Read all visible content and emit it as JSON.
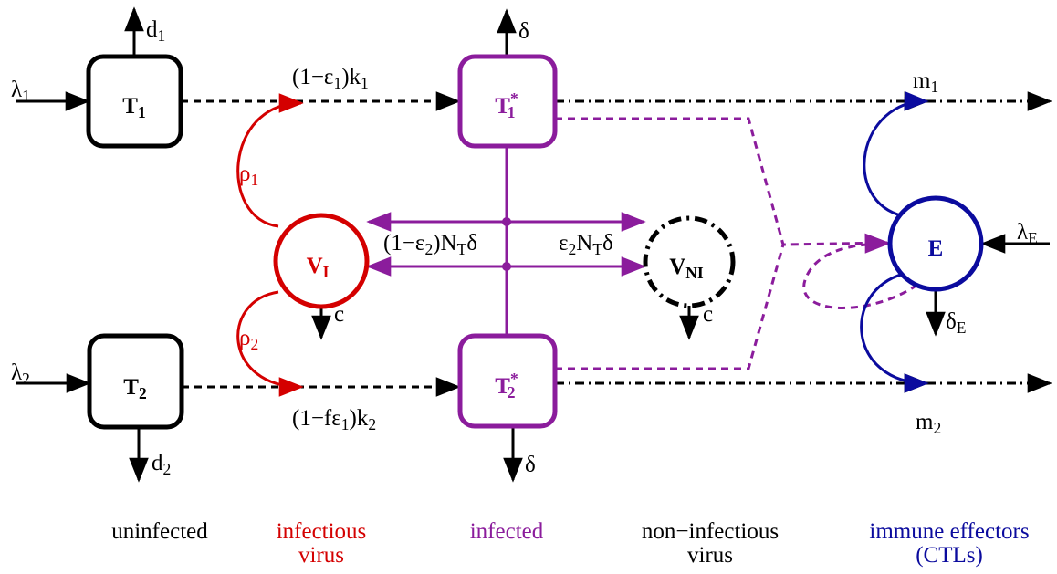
{
  "nodes": [
    [
      {
        "text": "T"
      },
      {
        "sub": "1"
      }
    ],
    [
      {
        "text": "T"
      },
      {
        "sub": "2"
      }
    ],
    [
      {
        "text": "T"
      },
      {
        "sup": "*"
      },
      {
        "sub": "1"
      }
    ],
    [
      {
        "text": "T"
      },
      {
        "sup": "*"
      },
      {
        "sub": "2"
      }
    ],
    [
      {
        "text": "V"
      },
      {
        "sub": "I"
      }
    ],
    [
      {
        "text": "V"
      },
      {
        "sub": "NI"
      }
    ],
    [
      {
        "text": "E"
      }
    ]
  ],
  "rates": [
    [
      {
        "text": "d"
      },
      {
        "sub": "1"
      }
    ],
    [
      {
        "text": "λ"
      },
      {
        "sub": "1"
      }
    ],
    [
      {
        "text": "(1−ε"
      },
      {
        "sub": "1"
      },
      {
        "text": ")k"
      },
      {
        "sub": "1"
      }
    ],
    [
      {
        "text": "δ"
      }
    ],
    [
      {
        "text": "m"
      },
      {
        "sub": "1"
      }
    ],
    [
      {
        "text": "ρ"
      },
      {
        "sub": "1"
      }
    ],
    [
      {
        "text": "(1−ε"
      },
      {
        "sub": "2"
      },
      {
        "text": ")N"
      },
      {
        "sub": "T"
      },
      {
        "text": "δ"
      }
    ],
    [
      {
        "text": "ε"
      },
      {
        "sub": "2"
      },
      {
        "text": "N"
      },
      {
        "sub": "T"
      },
      {
        "text": "δ"
      }
    ],
    [
      {
        "text": "c"
      }
    ],
    [
      {
        "text": "c"
      }
    ],
    [
      {
        "text": "λ"
      },
      {
        "sub": "E"
      }
    ],
    [
      {
        "text": "δ"
      },
      {
        "sub": "E"
      }
    ],
    [
      {
        "text": "ρ"
      },
      {
        "sub": "2"
      }
    ],
    [
      {
        "text": "λ"
      },
      {
        "sub": "2"
      }
    ],
    [
      {
        "text": "(1−fε"
      },
      {
        "sub": "1"
      },
      {
        "text": ")k"
      },
      {
        "sub": "2"
      }
    ],
    [
      {
        "text": "d"
      },
      {
        "sub": "2"
      }
    ],
    [
      {
        "text": "δ"
      }
    ],
    [
      {
        "text": "m"
      },
      {
        "sub": "2"
      }
    ]
  ],
  "categories": [
    [
      "uninfected"
    ],
    [
      "infectious",
      "virus"
    ],
    [
      "infected"
    ],
    [
      "non−infectious",
      "virus"
    ],
    [
      "immune effectors",
      "(CTLs)"
    ]
  ]
}
